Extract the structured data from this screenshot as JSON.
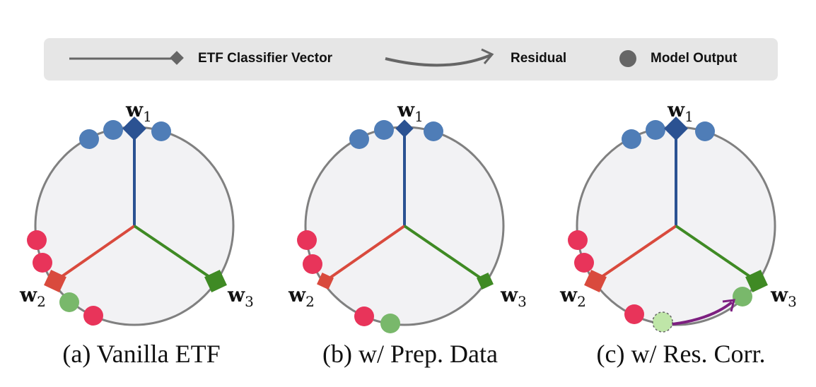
{
  "legend": {
    "classifier_label": "ETF Classifier Vector",
    "residual_label": "Residual",
    "output_label": "Model Output"
  },
  "colors": {
    "class1": "#2b5292",
    "class1_dot": "#4f7db7",
    "class2": "#d94a3d",
    "class2_dot": "#e8345a",
    "class3": "#3f8a24",
    "class3_dot": "#79b86b",
    "corrected_dot": "#bfe6a8",
    "residual": "#7d1f80",
    "circle_fill": "#f2f2f4",
    "circle_stroke": "#808080",
    "legend_bg": "#e6e6e6"
  },
  "panels": [
    {
      "caption": "(a) Vanilla ETF"
    },
    {
      "caption": "(b) w/ Prep. Data"
    },
    {
      "caption": "(c) w/ Res. Corr."
    }
  ],
  "vector_labels": {
    "w1": "w",
    "w1_sub": "1",
    "w2": "w",
    "w2_sub": "2",
    "w3": "w",
    "w3_sub": "3"
  }
}
